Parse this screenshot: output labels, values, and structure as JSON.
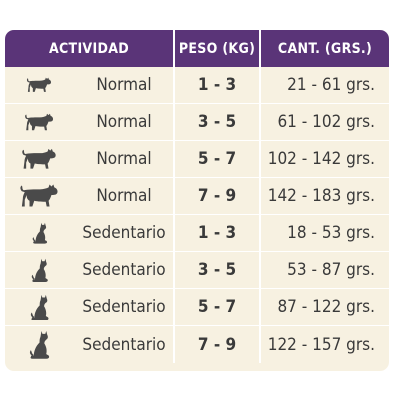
{
  "table": {
    "headers": {
      "actividad": "ACTIVIDAD",
      "peso": "PESO (KG)",
      "cantidad": "CANT. (GRS.)"
    },
    "rows": [
      {
        "icon": "walking-cat-small-icon",
        "actividad": "Normal",
        "peso": "1 - 3",
        "cantidad": "21 - 61  grs."
      },
      {
        "icon": "walking-cat-medium-icon",
        "actividad": "Normal",
        "peso": "3 - 5",
        "cantidad": "61 - 102  grs."
      },
      {
        "icon": "walking-cat-large-icon",
        "actividad": "Normal",
        "peso": "5 - 7",
        "cantidad": "102 - 142  grs."
      },
      {
        "icon": "walking-cat-xlarge-icon",
        "actividad": "Normal",
        "peso": "7 - 9",
        "cantidad": "142 - 183  grs."
      },
      {
        "icon": "sitting-cat-small-icon",
        "actividad": "Sedentario",
        "peso": "1 - 3",
        "cantidad": "18 - 53  grs."
      },
      {
        "icon": "sitting-cat-medium-icon",
        "actividad": "Sedentario",
        "peso": "3 - 5",
        "cantidad": "53 - 87  grs."
      },
      {
        "icon": "sitting-cat-large-icon",
        "actividad": "Sedentario",
        "peso": "5 - 7",
        "cantidad": "87 - 122  grs."
      },
      {
        "icon": "sitting-cat-xlarge-icon",
        "actividad": "Sedentario",
        "peso": "7 - 9",
        "cantidad": "122 - 157  grs."
      }
    ]
  },
  "colors": {
    "header_bg": "#5a3478",
    "card_bg": "#f7f1e1",
    "text": "#3a3a3a",
    "icon": "#4a4a4a"
  }
}
